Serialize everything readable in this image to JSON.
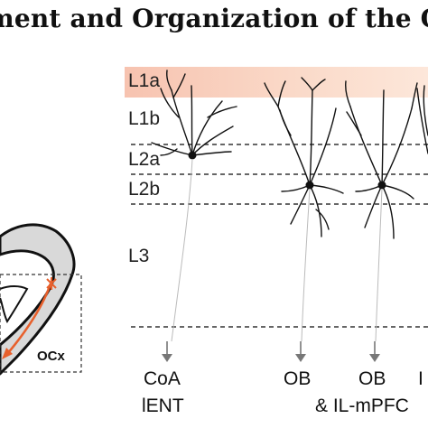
{
  "figure": {
    "title": "ment and Organization of the O",
    "layers": [
      {
        "id": "l1a",
        "label": "L1a"
      },
      {
        "id": "l1b",
        "label": "L1b"
      },
      {
        "id": "l2a",
        "label": "L2a"
      },
      {
        "id": "l2b",
        "label": "L2b"
      },
      {
        "id": "l3",
        "label": "L3"
      }
    ],
    "targets": {
      "coa": "CoA",
      "ient": "lENT",
      "ob1": "OB",
      "ob2": "OB",
      "il_mpfc": "& IL-mPFC",
      "cut": "I"
    },
    "inset_label": "OCx",
    "colors": {
      "l1a_band": "#f6c6b4",
      "axon_arrow": "#e8602c",
      "cortex_fill": "#d9d9d9",
      "neuron": "#111111",
      "dashed": "#333333",
      "arrow_gray": "#777777"
    }
  }
}
